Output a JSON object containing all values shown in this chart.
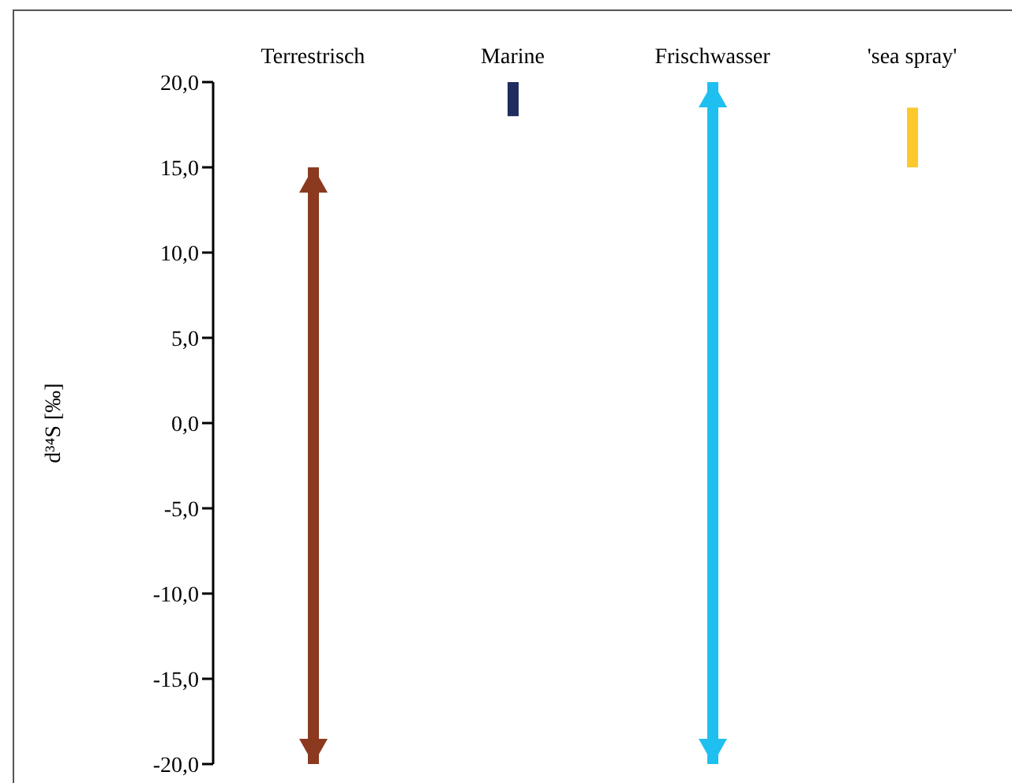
{
  "chart_data": {
    "type": "bar",
    "ylabel": "d³⁴S [‰]",
    "categories": [
      "Terrestrisch",
      "Marine",
      "Frischwasser",
      "'sea spray'"
    ],
    "series": [
      {
        "marker": "triangle",
        "colors": [
          "#8b3a20",
          null,
          "#1fbff0",
          null
        ],
        "base": [
          -20,
          null,
          -20,
          null
        ],
        "values": [
          35,
          null,
          40,
          null
        ]
      },
      {
        "marker": "none",
        "colors": [
          null,
          "#1f2d5e",
          null,
          "#fcc82c"
        ],
        "base": [
          null,
          18,
          null,
          15
        ],
        "values": [
          null,
          2,
          null,
          3.5
        ]
      }
    ],
    "ylim": [
      -20,
      20
    ],
    "yticks": [
      {
        "value": 20,
        "label": "20,0"
      },
      {
        "value": 15,
        "label": "15,0"
      },
      {
        "value": 10,
        "label": "10,0"
      },
      {
        "value": 5,
        "label": "5,0"
      },
      {
        "value": 0,
        "label": "0,0"
      },
      {
        "value": -5,
        "label": "-5,0"
      },
      {
        "value": -10,
        "label": "-10,0"
      },
      {
        "value": -15,
        "label": "-15,0"
      },
      {
        "value": -20,
        "label": "-20,0"
      }
    ],
    "grid": false,
    "legend": false
  }
}
